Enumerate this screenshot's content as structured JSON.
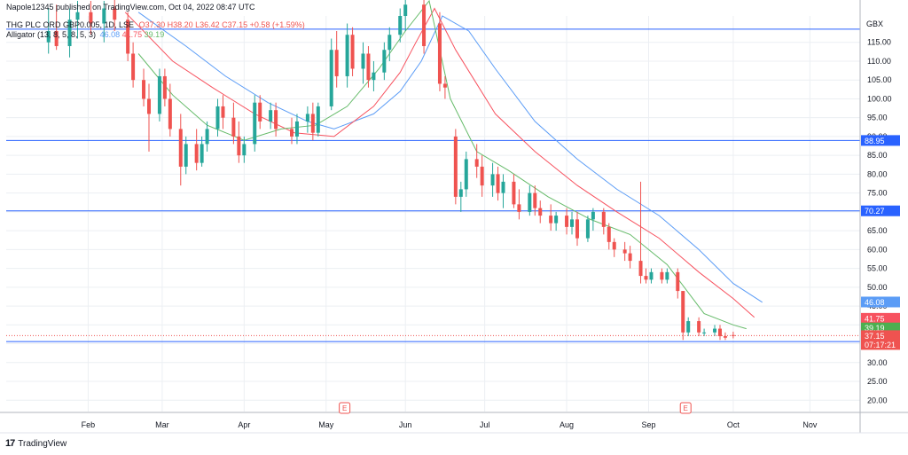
{
  "header": {
    "published": "Napole12345 published on TradingView.com, Oct 04, 2022 08:47 UTC",
    "symbol": "THG PLC ORD GBP0.005, 1D, LSE",
    "ohlc": "O37.30 H38.20 L36.42 C37.15 +0.58 (+1.59%)",
    "indicator_name": "Alligator (13, 8, 5, 8, 5, 3)",
    "indicator_vals": [
      "46.08",
      "41.75",
      "39.19"
    ]
  },
  "footer": {
    "brand": "TradingView"
  },
  "colors": {
    "up": "#26a69a",
    "down": "#ef5350",
    "jaw": "#5b9cf6",
    "teeth": "#f7525f",
    "lips": "#66bb6a",
    "hline": "#2962ff",
    "grid": "#eceff3",
    "axis_text": "#131722"
  },
  "chart_data": {
    "type": "candlestick",
    "currency": "GBX",
    "ylim": [
      17,
      122
    ],
    "yticks": [
      20,
      25,
      30,
      35,
      40,
      45,
      50,
      55,
      60,
      65,
      70,
      75,
      80,
      85,
      90,
      95,
      100,
      105,
      110,
      115
    ],
    "xlabels": [
      {
        "label": "Feb",
        "date": "2022-02-01"
      },
      {
        "label": "Mar",
        "date": "2022-03-01"
      },
      {
        "label": "Apr",
        "date": "2022-04-01"
      },
      {
        "label": "May",
        "date": "2022-05-02"
      },
      {
        "label": "Jun",
        "date": "2022-06-01"
      },
      {
        "label": "Jul",
        "date": "2022-07-01"
      },
      {
        "label": "Aug",
        "date": "2022-08-01"
      },
      {
        "label": "Sep",
        "date": "2022-09-01"
      },
      {
        "label": "Oct",
        "date": "2022-10-03"
      },
      {
        "label": "Nov",
        "date": "2022-11-01"
      }
    ],
    "horizontal_lines": [
      {
        "value": 118.5,
        "label": ""
      },
      {
        "value": 88.95,
        "label": "88.95"
      },
      {
        "value": 70.27,
        "label": "70.27"
      },
      {
        "value": 35.56,
        "label": "35.56"
      }
    ],
    "price_labels": [
      {
        "value": 46.08,
        "label": "46.08",
        "kind": "jaw"
      },
      {
        "value": 41.75,
        "label": "41.75",
        "kind": "teeth"
      },
      {
        "value": 39.19,
        "label": "39.19",
        "kind": "lips"
      },
      {
        "value": 37.15,
        "label": "37.15",
        "sub": "07:17:21",
        "kind": "last"
      }
    ],
    "last_price": 37.15,
    "earnings_markers": [
      {
        "date": "2022-05-09",
        "label": "E"
      },
      {
        "date": "2022-09-15",
        "label": "E"
      }
    ],
    "candles": [
      {
        "date": "2022-01-17",
        "o": 115,
        "h": 124,
        "l": 112,
        "c": 118
      },
      {
        "date": "2022-01-20",
        "o": 118,
        "h": 125,
        "l": 113,
        "c": 114
      },
      {
        "date": "2022-01-25",
        "o": 114,
        "h": 124,
        "l": 111,
        "c": 121
      },
      {
        "date": "2022-01-28",
        "o": 121,
        "h": 126,
        "l": 116,
        "c": 123
      },
      {
        "date": "2022-02-02",
        "o": 123,
        "h": 126,
        "l": 117,
        "c": 120
      },
      {
        "date": "2022-02-07",
        "o": 120,
        "h": 126,
        "l": 115,
        "c": 124
      },
      {
        "date": "2022-02-11",
        "o": 124,
        "h": 127,
        "l": 118,
        "c": 121
      },
      {
        "date": "2022-02-16",
        "o": 121,
        "h": 123,
        "l": 110,
        "c": 112
      },
      {
        "date": "2022-02-18",
        "o": 112,
        "h": 115,
        "l": 103,
        "c": 105
      },
      {
        "date": "2022-02-22",
        "o": 105,
        "h": 108,
        "l": 98,
        "c": 100
      },
      {
        "date": "2022-02-24",
        "o": 100,
        "h": 104,
        "l": 86,
        "c": 96
      },
      {
        "date": "2022-02-28",
        "o": 96,
        "h": 108,
        "l": 94,
        "c": 106
      },
      {
        "date": "2022-03-02",
        "o": 106,
        "h": 108,
        "l": 98,
        "c": 100
      },
      {
        "date": "2022-03-04",
        "o": 100,
        "h": 104,
        "l": 90,
        "c": 92
      },
      {
        "date": "2022-03-08",
        "o": 92,
        "h": 96,
        "l": 77,
        "c": 82
      },
      {
        "date": "2022-03-10",
        "o": 82,
        "h": 90,
        "l": 80,
        "c": 88
      },
      {
        "date": "2022-03-14",
        "o": 88,
        "h": 92,
        "l": 81,
        "c": 83
      },
      {
        "date": "2022-03-16",
        "o": 83,
        "h": 90,
        "l": 82,
        "c": 88
      },
      {
        "date": "2022-03-18",
        "o": 88,
        "h": 94,
        "l": 86,
        "c": 92
      },
      {
        "date": "2022-03-22",
        "o": 92,
        "h": 100,
        "l": 90,
        "c": 98
      },
      {
        "date": "2022-03-24",
        "o": 98,
        "h": 101,
        "l": 92,
        "c": 95
      },
      {
        "date": "2022-03-28",
        "o": 95,
        "h": 99,
        "l": 88,
        "c": 90
      },
      {
        "date": "2022-03-30",
        "o": 90,
        "h": 94,
        "l": 83,
        "c": 85
      },
      {
        "date": "2022-04-01",
        "o": 85,
        "h": 90,
        "l": 83,
        "c": 88
      },
      {
        "date": "2022-04-05",
        "o": 88,
        "h": 101,
        "l": 86,
        "c": 99
      },
      {
        "date": "2022-04-07",
        "o": 99,
        "h": 101,
        "l": 92,
        "c": 94
      },
      {
        "date": "2022-04-11",
        "o": 94,
        "h": 99,
        "l": 92,
        "c": 97
      },
      {
        "date": "2022-04-13",
        "o": 97,
        "h": 99,
        "l": 90,
        "c": 92
      },
      {
        "date": "2022-04-19",
        "o": 92,
        "h": 95,
        "l": 88,
        "c": 90
      },
      {
        "date": "2022-04-21",
        "o": 90,
        "h": 96,
        "l": 88,
        "c": 94
      },
      {
        "date": "2022-04-25",
        "o": 94,
        "h": 98,
        "l": 91,
        "c": 96
      },
      {
        "date": "2022-04-27",
        "o": 96,
        "h": 99,
        "l": 89,
        "c": 91
      },
      {
        "date": "2022-04-29",
        "o": 91,
        "h": 99,
        "l": 90,
        "c": 98
      },
      {
        "date": "2022-05-04",
        "o": 98,
        "h": 116,
        "l": 97,
        "c": 113
      },
      {
        "date": "2022-05-06",
        "o": 113,
        "h": 118,
        "l": 103,
        "c": 106
      },
      {
        "date": "2022-05-10",
        "o": 106,
        "h": 120,
        "l": 103,
        "c": 117
      },
      {
        "date": "2022-05-12",
        "o": 117,
        "h": 119,
        "l": 106,
        "c": 108
      },
      {
        "date": "2022-05-16",
        "o": 108,
        "h": 115,
        "l": 104,
        "c": 112
      },
      {
        "date": "2022-05-18",
        "o": 112,
        "h": 114,
        "l": 103,
        "c": 105
      },
      {
        "date": "2022-05-20",
        "o": 105,
        "h": 110,
        "l": 102,
        "c": 107
      },
      {
        "date": "2022-05-24",
        "o": 107,
        "h": 115,
        "l": 105,
        "c": 113
      },
      {
        "date": "2022-05-26",
        "o": 113,
        "h": 119,
        "l": 110,
        "c": 117
      },
      {
        "date": "2022-05-30",
        "o": 117,
        "h": 124,
        "l": 115,
        "c": 122
      },
      {
        "date": "2022-06-01",
        "o": 122,
        "h": 127,
        "l": 118,
        "c": 125
      },
      {
        "date": "2022-06-08",
        "o": 125,
        "h": 127,
        "l": 112,
        "c": 114
      },
      {
        "date": "2022-06-14",
        "o": 120,
        "h": 123,
        "l": 102,
        "c": 104
      },
      {
        "date": "2022-06-16",
        "o": 104,
        "h": 106,
        "l": 100,
        "c": 103
      },
      {
        "date": "2022-06-20",
        "o": 90,
        "h": 92,
        "l": 72,
        "c": 74
      },
      {
        "date": "2022-06-22",
        "o": 74,
        "h": 78,
        "l": 70,
        "c": 76
      },
      {
        "date": "2022-06-24",
        "o": 76,
        "h": 86,
        "l": 74,
        "c": 84
      },
      {
        "date": "2022-06-28",
        "o": 84,
        "h": 88,
        "l": 79,
        "c": 82
      },
      {
        "date": "2022-06-30",
        "o": 82,
        "h": 85,
        "l": 74,
        "c": 77
      },
      {
        "date": "2022-07-04",
        "o": 77,
        "h": 83,
        "l": 74,
        "c": 80
      },
      {
        "date": "2022-07-06",
        "o": 80,
        "h": 82,
        "l": 73,
        "c": 75
      },
      {
        "date": "2022-07-08",
        "o": 75,
        "h": 80,
        "l": 71,
        "c": 78
      },
      {
        "date": "2022-07-12",
        "o": 78,
        "h": 80,
        "l": 71,
        "c": 72
      },
      {
        "date": "2022-07-14",
        "o": 72,
        "h": 76,
        "l": 68,
        "c": 70
      },
      {
        "date": "2022-07-18",
        "o": 70,
        "h": 77,
        "l": 69,
        "c": 75
      },
      {
        "date": "2022-07-20",
        "o": 75,
        "h": 77,
        "l": 69,
        "c": 71
      },
      {
        "date": "2022-07-22",
        "o": 71,
        "h": 73,
        "l": 67,
        "c": 69
      },
      {
        "date": "2022-07-26",
        "o": 69,
        "h": 72,
        "l": 65,
        "c": 67
      },
      {
        "date": "2022-07-28",
        "o": 67,
        "h": 70,
        "l": 65,
        "c": 69
      },
      {
        "date": "2022-08-01",
        "o": 69,
        "h": 71,
        "l": 64,
        "c": 66
      },
      {
        "date": "2022-08-03",
        "o": 66,
        "h": 70,
        "l": 64,
        "c": 68
      },
      {
        "date": "2022-08-05",
        "o": 68,
        "h": 70,
        "l": 61,
        "c": 63
      },
      {
        "date": "2022-08-09",
        "o": 63,
        "h": 69,
        "l": 62,
        "c": 68
      },
      {
        "date": "2022-08-11",
        "o": 68,
        "h": 71,
        "l": 65,
        "c": 70
      },
      {
        "date": "2022-08-15",
        "o": 70,
        "h": 71,
        "l": 64,
        "c": 66
      },
      {
        "date": "2022-08-17",
        "o": 66,
        "h": 67,
        "l": 60,
        "c": 62
      },
      {
        "date": "2022-08-19",
        "o": 62,
        "h": 63,
        "l": 58,
        "c": 60
      },
      {
        "date": "2022-08-23",
        "o": 60,
        "h": 62,
        "l": 57,
        "c": 59
      },
      {
        "date": "2022-08-25",
        "o": 59,
        "h": 61,
        "l": 55,
        "c": 57
      },
      {
        "date": "2022-08-29",
        "o": 57,
        "h": 78,
        "l": 51,
        "c": 53
      },
      {
        "date": "2022-08-31",
        "o": 53,
        "h": 55,
        "l": 51,
        "c": 52
      },
      {
        "date": "2022-09-02",
        "o": 52,
        "h": 55,
        "l": 51,
        "c": 54
      },
      {
        "date": "2022-09-06",
        "o": 54,
        "h": 55,
        "l": 51,
        "c": 52
      },
      {
        "date": "2022-09-08",
        "o": 52,
        "h": 55,
        "l": 51,
        "c": 54
      },
      {
        "date": "2022-09-12",
        "o": 54,
        "h": 55,
        "l": 47,
        "c": 49
      },
      {
        "date": "2022-09-14",
        "o": 49,
        "h": 48,
        "l": 36,
        "c": 38
      },
      {
        "date": "2022-09-16",
        "o": 38,
        "h": 42,
        "l": 37,
        "c": 41
      },
      {
        "date": "2022-09-20",
        "o": 41,
        "h": 42,
        "l": 37,
        "c": 38
      },
      {
        "date": "2022-09-22",
        "o": 38,
        "h": 39,
        "l": 37,
        "c": 38
      },
      {
        "date": "2022-09-26",
        "o": 38,
        "h": 40,
        "l": 37,
        "c": 39
      },
      {
        "date": "2022-09-28",
        "o": 39,
        "h": 40,
        "l": 36,
        "c": 37
      },
      {
        "date": "2022-09-30",
        "o": 37,
        "h": 38,
        "l": 36,
        "c": 36.6
      },
      {
        "date": "2022-10-03",
        "o": 37.3,
        "h": 38.2,
        "l": 36.42,
        "c": 37.15
      }
    ],
    "series": [
      {
        "name": "Jaw",
        "values": [
          {
            "date": "2022-02-20",
            "v": 123
          },
          {
            "date": "2022-03-10",
            "v": 114
          },
          {
            "date": "2022-03-25",
            "v": 106
          },
          {
            "date": "2022-04-10",
            "v": 99
          },
          {
            "date": "2022-04-25",
            "v": 94
          },
          {
            "date": "2022-05-05",
            "v": 92
          },
          {
            "date": "2022-05-20",
            "v": 96
          },
          {
            "date": "2022-05-30",
            "v": 102
          },
          {
            "date": "2022-06-07",
            "v": 110
          },
          {
            "date": "2022-06-15",
            "v": 122
          },
          {
            "date": "2022-06-25",
            "v": 118
          },
          {
            "date": "2022-07-05",
            "v": 108
          },
          {
            "date": "2022-07-20",
            "v": 94
          },
          {
            "date": "2022-08-05",
            "v": 84
          },
          {
            "date": "2022-08-20",
            "v": 76
          },
          {
            "date": "2022-09-05",
            "v": 69
          },
          {
            "date": "2022-09-20",
            "v": 60
          },
          {
            "date": "2022-10-03",
            "v": 51
          },
          {
            "date": "2022-10-14",
            "v": 46
          }
        ]
      },
      {
        "name": "Teeth",
        "values": [
          {
            "date": "2022-02-15",
            "v": 123
          },
          {
            "date": "2022-03-05",
            "v": 110
          },
          {
            "date": "2022-03-20",
            "v": 103
          },
          {
            "date": "2022-04-05",
            "v": 96
          },
          {
            "date": "2022-04-20",
            "v": 91
          },
          {
            "date": "2022-05-05",
            "v": 90
          },
          {
            "date": "2022-05-20",
            "v": 98
          },
          {
            "date": "2022-05-30",
            "v": 107
          },
          {
            "date": "2022-06-05",
            "v": 115
          },
          {
            "date": "2022-06-12",
            "v": 124
          },
          {
            "date": "2022-06-20",
            "v": 113
          },
          {
            "date": "2022-07-05",
            "v": 96
          },
          {
            "date": "2022-07-20",
            "v": 86
          },
          {
            "date": "2022-08-05",
            "v": 77
          },
          {
            "date": "2022-08-20",
            "v": 70
          },
          {
            "date": "2022-09-05",
            "v": 63
          },
          {
            "date": "2022-09-20",
            "v": 54
          },
          {
            "date": "2022-10-03",
            "v": 47
          },
          {
            "date": "2022-10-11",
            "v": 42
          }
        ]
      },
      {
        "name": "Lips",
        "values": [
          {
            "date": "2022-02-20",
            "v": 112
          },
          {
            "date": "2022-03-05",
            "v": 101
          },
          {
            "date": "2022-03-18",
            "v": 93
          },
          {
            "date": "2022-04-01",
            "v": 89
          },
          {
            "date": "2022-04-15",
            "v": 92
          },
          {
            "date": "2022-04-28",
            "v": 93
          },
          {
            "date": "2022-05-10",
            "v": 98
          },
          {
            "date": "2022-05-22",
            "v": 108
          },
          {
            "date": "2022-06-01",
            "v": 118
          },
          {
            "date": "2022-06-10",
            "v": 126
          },
          {
            "date": "2022-06-18",
            "v": 100
          },
          {
            "date": "2022-06-28",
            "v": 86
          },
          {
            "date": "2022-07-10",
            "v": 81
          },
          {
            "date": "2022-07-25",
            "v": 74
          },
          {
            "date": "2022-08-10",
            "v": 68
          },
          {
            "date": "2022-08-25",
            "v": 64
          },
          {
            "date": "2022-09-08",
            "v": 56
          },
          {
            "date": "2022-09-22",
            "v": 43
          },
          {
            "date": "2022-10-03",
            "v": 40
          },
          {
            "date": "2022-10-08",
            "v": 39
          }
        ]
      }
    ]
  }
}
